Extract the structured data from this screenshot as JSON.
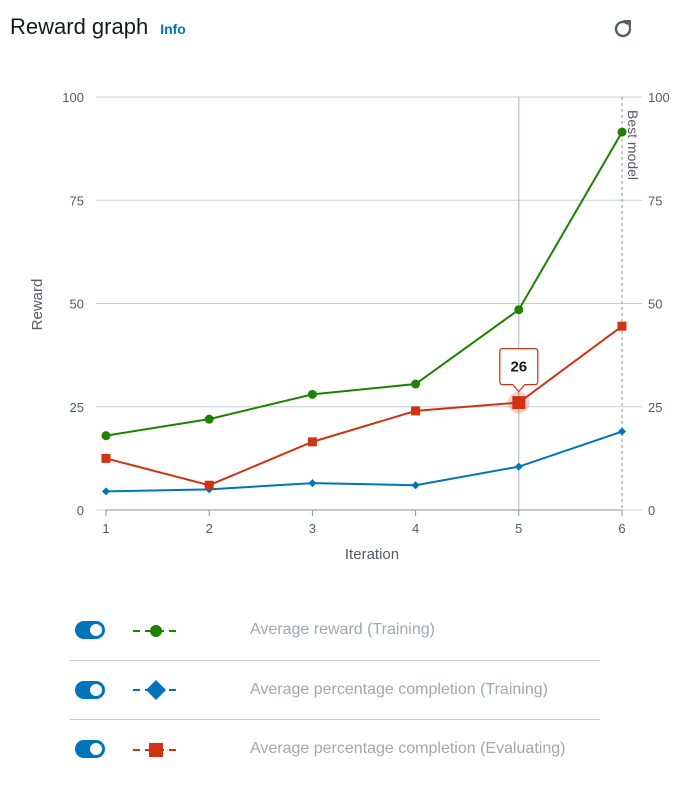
{
  "header": {
    "title": "Reward graph",
    "info_label": "Info",
    "refresh_icon": "refresh-icon"
  },
  "chart_data": {
    "type": "line",
    "xlabel": "Iteration",
    "ylabel": "Reward",
    "x": [
      1,
      2,
      3,
      4,
      5,
      6
    ],
    "xlim": [
      1,
      6
    ],
    "ylim": [
      0,
      100
    ],
    "y_ticks": [
      0,
      25,
      50,
      75,
      100
    ],
    "grid": true,
    "best_model_label": "Best model",
    "best_model_x": 6,
    "series": [
      {
        "name": "Average reward (Training)",
        "color": "#1d8102",
        "marker": "circle",
        "values": [
          18,
          22,
          28,
          30.5,
          48.5,
          91.5
        ]
      },
      {
        "name": "Average percentage completion (Training)",
        "color": "#0073bb",
        "marker": "diamond",
        "values": [
          4.5,
          5,
          6.5,
          6,
          10.5,
          19
        ]
      },
      {
        "name": "Average percentage completion (Evaluating)",
        "color": "#d13212",
        "marker": "square",
        "values": [
          12.5,
          6,
          16.5,
          24,
          26,
          44.5
        ]
      }
    ],
    "tooltip": {
      "series_index": 2,
      "x": 5,
      "label": "26"
    }
  },
  "legend": [
    {
      "label": "Average reward (Training)",
      "enabled": true,
      "color": "#1d8102",
      "marker": "circle"
    },
    {
      "label": "Average percentage completion (Training)",
      "enabled": true,
      "color": "#0073bb",
      "marker": "diamond"
    },
    {
      "label": "Average percentage completion (Evaluating)",
      "enabled": true,
      "color": "#d13212",
      "marker": "square"
    }
  ]
}
